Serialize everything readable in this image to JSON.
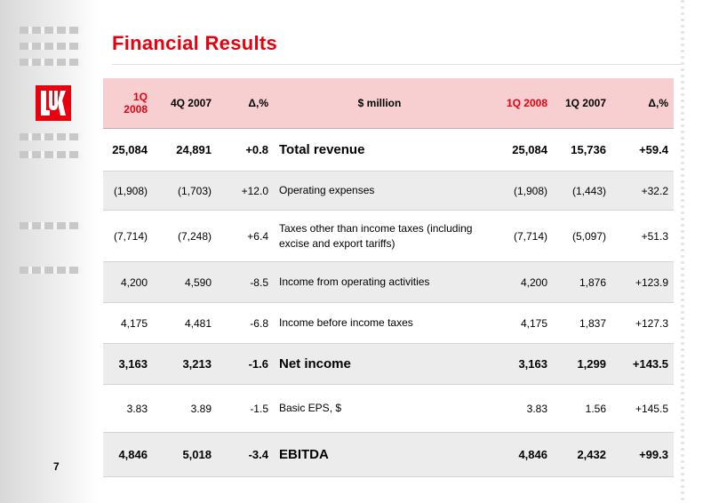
{
  "title": "Financial Results",
  "page_number": "7",
  "colors": {
    "accent": "#e8000e",
    "header_bg": "#f7cfd0",
    "row_shade": "#ececec"
  },
  "logo": {
    "icon": "lukoil-logo-icon"
  },
  "table": {
    "headers": {
      "c1": "1Q 2008",
      "c2": "4Q 2007",
      "c3": "Δ,%",
      "c4": "$ million",
      "c5": "1Q 2008",
      "c6": "1Q 2007",
      "c7": "Δ,%"
    },
    "rows": [
      {
        "c1": "25,084",
        "c2": "24,891",
        "c3": "+0.8",
        "label": "Total revenue",
        "c5": "25,084",
        "c6": "15,736",
        "c7": "+59.4"
      },
      {
        "c1": "(1,908)",
        "c2": "(1,703)",
        "c3": "+12.0",
        "label": "Operating expenses",
        "c5": "(1,908)",
        "c6": "(1,443)",
        "c7": "+32.2"
      },
      {
        "c1": "(7,714)",
        "c2": "(7,248)",
        "c3": "+6.4",
        "label": "Taxes other than income taxes (including excise and export tariffs)",
        "c5": "(7,714)",
        "c6": "(5,097)",
        "c7": "+51.3"
      },
      {
        "c1": "4,200",
        "c2": "4,590",
        "c3": "-8.5",
        "label": "Income from operating activities",
        "c5": "4,200",
        "c6": "1,876",
        "c7": "+123.9"
      },
      {
        "c1": "4,175",
        "c2": "4,481",
        "c3": "-6.8",
        "label": "Income before income taxes",
        "c5": "4,175",
        "c6": "1,837",
        "c7": "+127.3"
      },
      {
        "c1": "3,163",
        "c2": "3,213",
        "c3": "-1.6",
        "label": "Net income",
        "c5": "3,163",
        "c6": "1,299",
        "c7": "+143.5"
      },
      {
        "c1": "3.83",
        "c2": "3.89",
        "c3": "-1.5",
        "label": "Basic EPS, $",
        "c5": "3.83",
        "c6": "1.56",
        "c7": "+145.5"
      },
      {
        "c1": "4,846",
        "c2": "5,018",
        "c3": "-3.4",
        "label": "EBITDA",
        "c5": "4,846",
        "c6": "2,432",
        "c7": "+99.3"
      }
    ]
  }
}
